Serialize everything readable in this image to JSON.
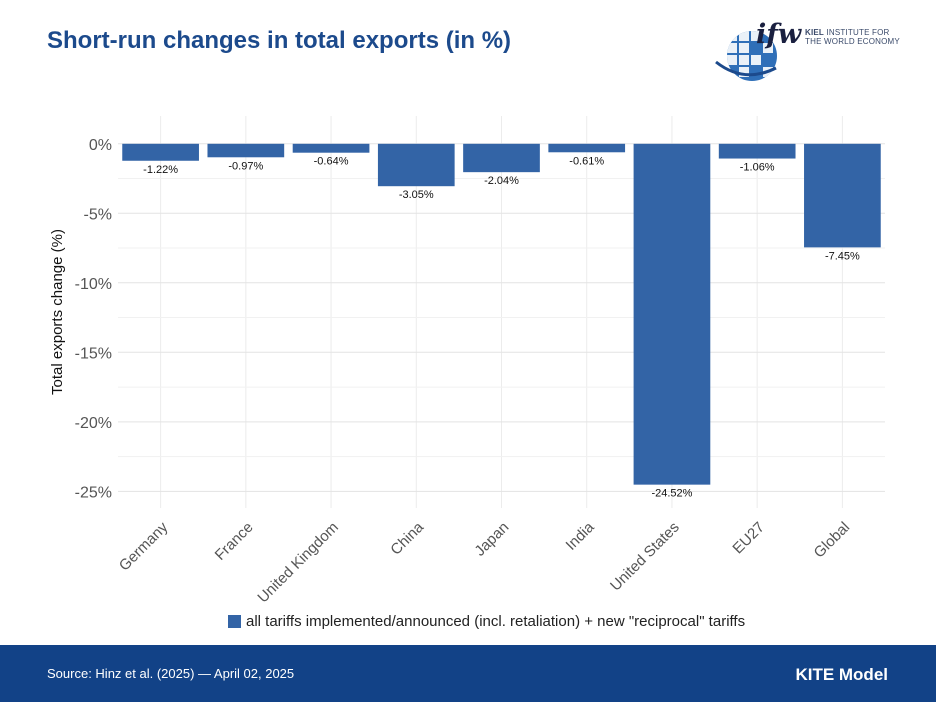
{
  "header": {
    "title": "Short-run changes in total exports (in %)"
  },
  "logo": {
    "mark": "ifw",
    "line1_bold": "KIEL",
    "line1_rest": "INSTITUTE FOR",
    "line2": "THE WORLD ECONOMY"
  },
  "footer": {
    "source": "Source: Hinz et al. (2025) — April 02, 2025",
    "model": "KITE Model"
  },
  "colors": {
    "bar": "#3364a6",
    "title": "#1c4a8c",
    "footer": "#124287"
  },
  "chart_data": {
    "type": "bar",
    "title": "Short-run changes in total exports (in %)",
    "xlabel": "",
    "ylabel": "Total exports change (%)",
    "categories": [
      "Germany",
      "France",
      "United Kingdom",
      "China",
      "Japan",
      "India",
      "United States",
      "EU27",
      "Global"
    ],
    "series": [
      {
        "name": "all tariffs implemented/announced (incl. retaliation) + new \"reciprocal\" tariffs",
        "values": [
          -1.22,
          -0.97,
          -0.64,
          -3.05,
          -2.04,
          -0.61,
          -24.52,
          -1.06,
          -7.45
        ]
      }
    ],
    "data_labels": [
      "-1.22%",
      "-0.97%",
      "-0.64%",
      "-3.05%",
      "-2.04%",
      "-0.61%",
      "-24.52%",
      "-1.06%",
      "-7.45%"
    ],
    "yticks": [
      0,
      -5,
      -10,
      -15,
      -20,
      -25
    ],
    "ytick_labels": [
      "0%",
      "-5%",
      "-10%",
      "-15%",
      "-20%",
      "-25%"
    ],
    "ylim": [
      -26.2,
      2.0
    ],
    "grid": true,
    "legend_position": "bottom"
  }
}
